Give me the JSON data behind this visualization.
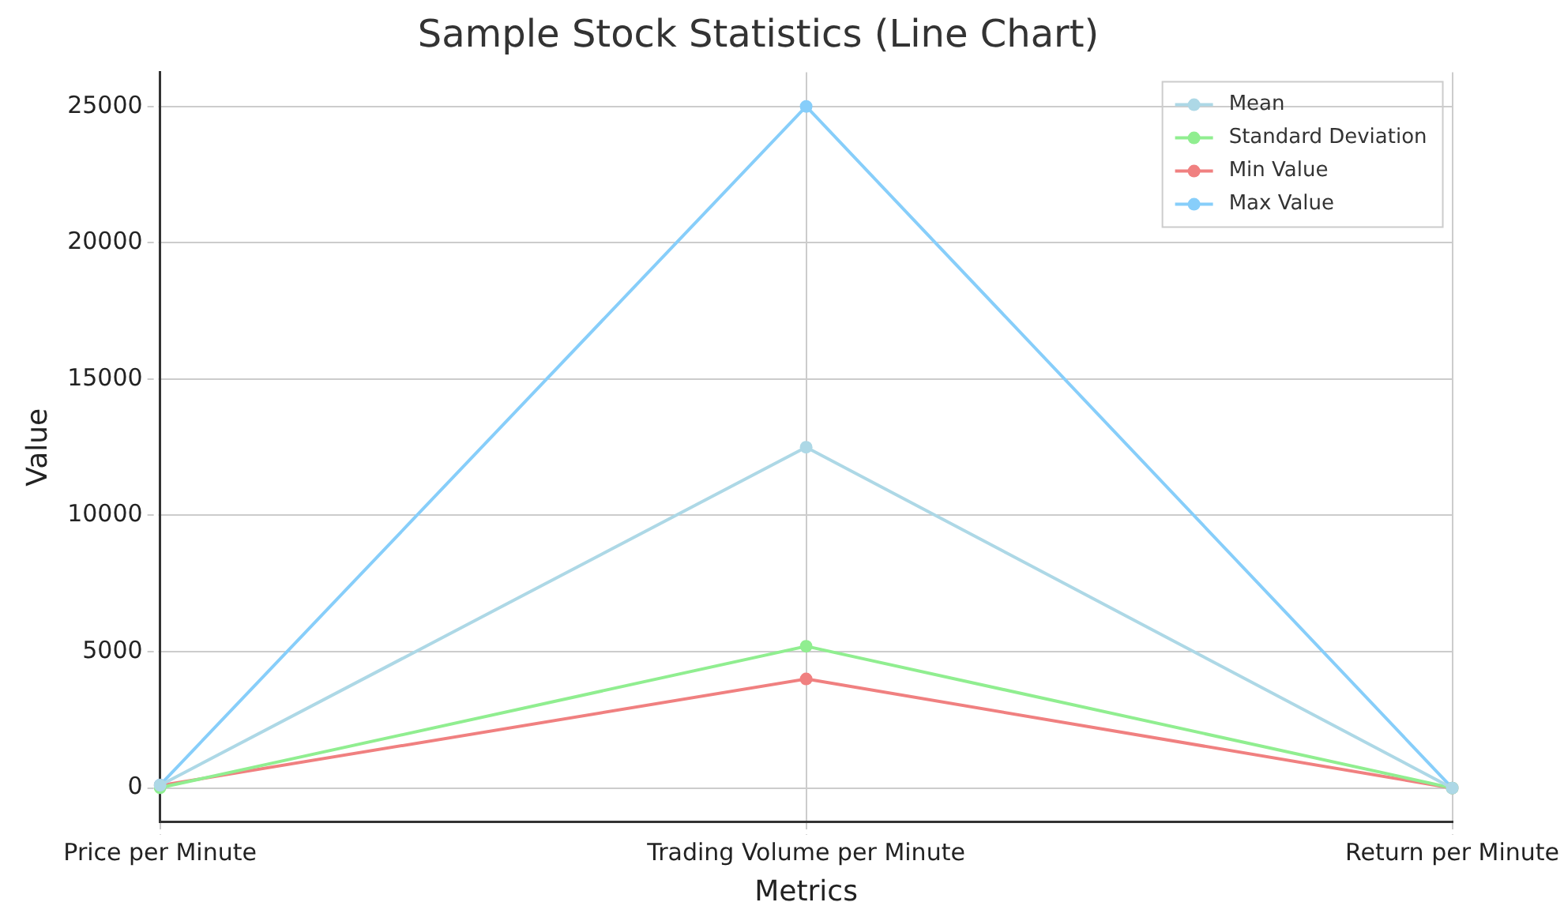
{
  "chart_data": {
    "type": "line",
    "title": "Sample Stock Statistics (Line Chart)",
    "xlabel": "Metrics",
    "ylabel": "Value",
    "categories": [
      "Price per Minute",
      "Trading Volume per Minute",
      "Return per Minute"
    ],
    "series": [
      {
        "name": "Mean",
        "color": "#add8e6",
        "values": [
          100,
          12500,
          0
        ]
      },
      {
        "name": "Standard Deviation",
        "color": "#90ee90",
        "values": [
          10,
          5200,
          0
        ]
      },
      {
        "name": "Min Value",
        "color": "#f08080",
        "values": [
          90,
          4000,
          0
        ]
      },
      {
        "name": "Max Value",
        "color": "#87cefa",
        "values": [
          110,
          25000,
          0
        ]
      }
    ],
    "ylim": [
      -1250,
      26250
    ],
    "yticks": [
      0,
      5000,
      10000,
      15000,
      20000,
      25000
    ],
    "grid": true,
    "legend": "top right",
    "marker": "circle",
    "line_style": "solid"
  }
}
